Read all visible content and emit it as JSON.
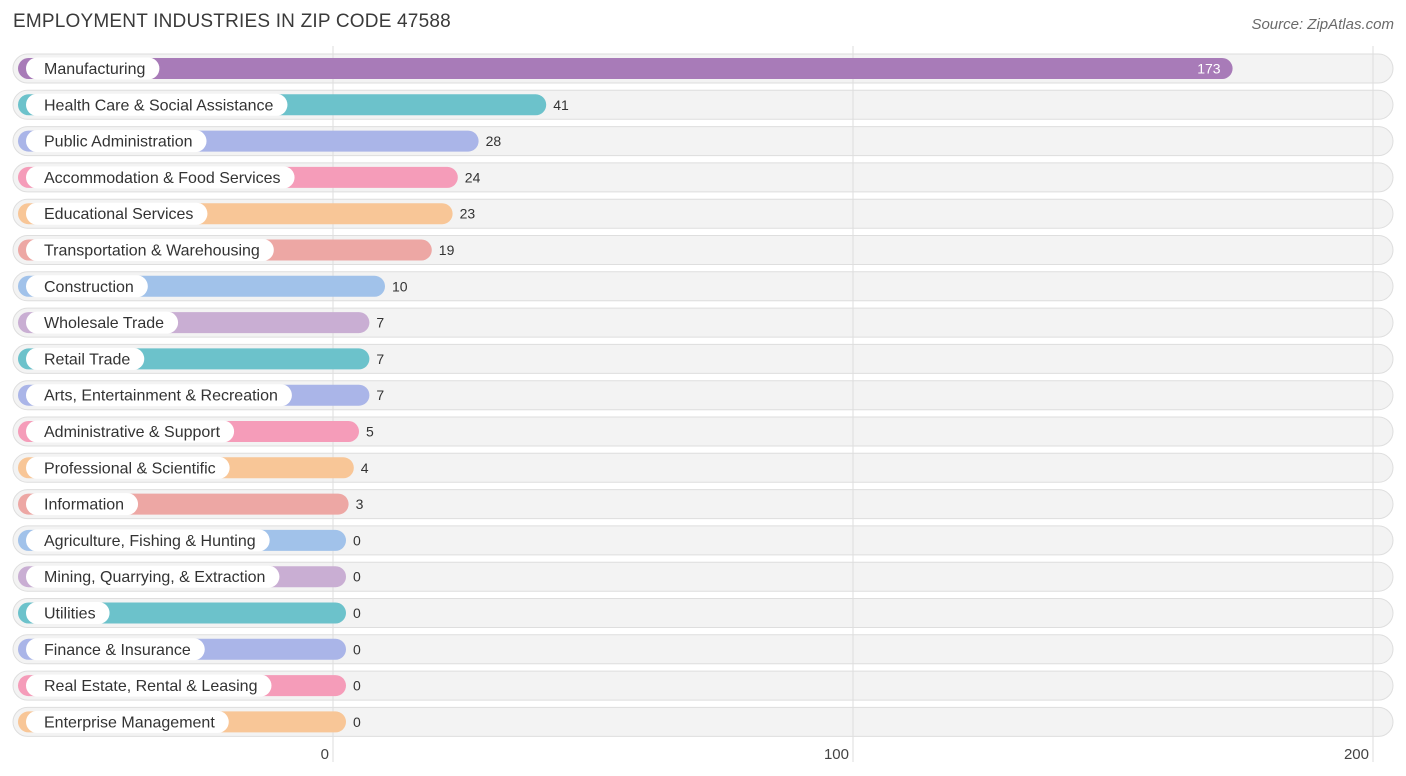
{
  "title": "EMPLOYMENT INDUSTRIES IN ZIP CODE 47588",
  "source": "Source: ZipAtlas.com",
  "chart_data": {
    "type": "bar",
    "orientation": "horizontal",
    "title": "EMPLOYMENT INDUSTRIES IN ZIP CODE 47588",
    "xlim": [
      0,
      200
    ],
    "xticks": [
      0,
      100,
      200
    ],
    "grid": true,
    "categories": [
      "Manufacturing",
      "Health Care & Social Assistance",
      "Public Administration",
      "Accommodation & Food Services",
      "Educational Services",
      "Transportation & Warehousing",
      "Construction",
      "Wholesale Trade",
      "Retail Trade",
      "Arts, Entertainment & Recreation",
      "Administrative & Support",
      "Professional & Scientific",
      "Information",
      "Agriculture, Fishing & Hunting",
      "Mining, Quarrying, & Extraction",
      "Utilities",
      "Finance & Insurance",
      "Real Estate, Rental & Leasing",
      "Enterprise Management"
    ],
    "values": [
      173,
      41,
      28,
      24,
      23,
      19,
      10,
      7,
      7,
      7,
      5,
      4,
      3,
      0,
      0,
      0,
      0,
      0,
      0
    ],
    "colors": [
      "#a87bb8",
      "#6cc2cb",
      "#aab5e8",
      "#f59cb9",
      "#f8c697",
      "#eda7a4",
      "#a1c2ea",
      "#c9aed3",
      "#6cc2cb",
      "#aab5e8",
      "#f59cb9",
      "#f8c697",
      "#eda7a4",
      "#a1c2ea",
      "#c9aed3",
      "#6cc2cb",
      "#aab5e8",
      "#f59cb9",
      "#f8c697"
    ]
  }
}
